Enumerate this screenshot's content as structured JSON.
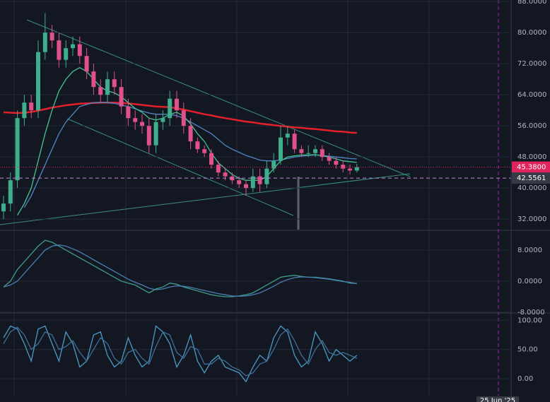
{
  "chart_data": [
    {
      "type": "candlestick",
      "open": [
        34,
        36,
        42,
        58,
        62,
        60,
        75,
        80,
        78,
        73,
        76,
        77,
        74,
        70,
        66,
        64,
        68,
        66,
        61,
        58,
        57,
        56,
        51,
        57,
        58,
        63,
        60,
        56,
        52,
        50,
        49,
        46,
        44,
        43,
        42,
        41,
        40,
        43,
        41,
        45,
        47,
        53,
        54,
        50,
        49,
        49,
        50,
        48,
        47,
        46,
        45,
        44.5
      ],
      "high": [
        38,
        44,
        60,
        64,
        64,
        78,
        85,
        82,
        80,
        78,
        79,
        79,
        76,
        72,
        68,
        70,
        70,
        68,
        63,
        60,
        59,
        58,
        59,
        60,
        65,
        65,
        62,
        58,
        53,
        51,
        50,
        47,
        45,
        44,
        43,
        42,
        45,
        45,
        47,
        49,
        56,
        56,
        55,
        51,
        51,
        51,
        51,
        49,
        48,
        47,
        46,
        46.2
      ],
      "low": [
        32,
        34,
        40,
        56,
        58,
        58,
        73,
        76,
        71,
        71,
        74,
        72,
        68,
        64,
        62,
        62,
        64,
        59,
        56,
        55,
        54,
        49,
        49,
        55,
        56,
        58,
        54,
        50,
        49,
        48,
        45,
        43,
        42,
        41,
        40,
        38,
        39,
        39,
        40,
        44,
        46,
        51,
        49,
        48,
        48,
        48,
        47,
        46,
        45,
        44,
        43.5,
        44
      ],
      "close": [
        36,
        42,
        58,
        62,
        60,
        75,
        80,
        78,
        73,
        76,
        77,
        74,
        70,
        66,
        64,
        68,
        66,
        61,
        58,
        57,
        56,
        51,
        57,
        58,
        63,
        60,
        56,
        52,
        50,
        49,
        46,
        44,
        43,
        42,
        41,
        40,
        43,
        41,
        45,
        47,
        53,
        54,
        50,
        49,
        49,
        50,
        48,
        47,
        46,
        45,
        44.5,
        45.38
      ],
      "up_color": "#3fae8c",
      "down_color": "#e0508a",
      "series": [
        {
          "color": "#e3202a",
          "values": [
            59.5,
            59.4,
            59.3,
            59.4,
            59.6,
            59.9,
            60.3,
            60.7,
            61,
            61.3,
            61.5,
            61.7,
            61.8,
            61.9,
            62,
            62,
            62,
            61.9,
            61.8,
            61.6,
            61.4,
            61.2,
            61,
            60.9,
            60.8,
            60.5,
            60.2,
            59.8,
            59.4,
            59,
            58.7,
            58.3,
            58,
            57.7,
            57.4,
            57.1,
            56.9,
            56.6,
            56.4,
            56.2,
            56,
            55.8,
            55.6,
            55.5,
            55.3,
            55.2,
            55,
            54.8,
            54.6,
            54.5,
            54.3,
            54.2
          ]
        },
        {
          "color": "#4f86c6",
          "values": [
            null,
            null,
            null,
            35,
            38,
            42,
            46,
            50,
            54,
            57,
            59,
            61,
            61.5,
            62,
            62,
            62,
            61.8,
            61.4,
            61,
            60.4,
            59.8,
            59.3,
            59,
            59,
            59,
            58.6,
            58,
            57,
            56,
            55,
            54,
            52.5,
            51,
            50,
            49.2,
            48.4,
            47.8,
            47.2,
            47,
            47,
            47.2,
            47.6,
            48,
            48.2,
            48.4,
            48.5,
            48.4,
            48.2,
            48,
            47.8,
            47.6,
            47.5
          ]
        },
        {
          "color": "#45c48f",
          "values": [
            null,
            null,
            33,
            36,
            40,
            47,
            54,
            60,
            65,
            68,
            70,
            71,
            70,
            68,
            66,
            65,
            64.5,
            63.5,
            62,
            60.5,
            59.5,
            58,
            57.5,
            58,
            59,
            59.5,
            58.5,
            56.5,
            54,
            52,
            49,
            46.5,
            45,
            43.5,
            42.5,
            42,
            42,
            42,
            43,
            45,
            47,
            48,
            48.3,
            48.5,
            48.5,
            48.6,
            48.3,
            48,
            47.5,
            47,
            46.8,
            46.6
          ]
        }
      ],
      "ylim": [
        29.3,
        88.4
      ],
      "yticks": [
        {
          "value": 32,
          "label": "32.0000"
        },
        {
          "value": 40,
          "label": "40.0000"
        },
        {
          "value": 48,
          "label": "48.0000"
        },
        {
          "value": 56,
          "label": "56.0000"
        },
        {
          "value": 64,
          "label": "64.0000"
        },
        {
          "value": 72,
          "label": "72.0000"
        },
        {
          "value": 80,
          "label": "80.0000"
        },
        {
          "value": 88,
          "label": "88.0000"
        }
      ],
      "last_price": {
        "value": 45.38,
        "label": "45.3800",
        "color": "#e0245e"
      },
      "crosshair": {
        "value": 42.5561,
        "label": "42.5561",
        "x_label": "25 Jun '25"
      },
      "grid": true
    },
    {
      "type": "line",
      "series": [
        {
          "color": "#3d9c8c",
          "values": [
            -1.5,
            0,
            3,
            5,
            7,
            9,
            10.5,
            10,
            9,
            8,
            7,
            6,
            5,
            4,
            3,
            2,
            1,
            0,
            -0.5,
            -1,
            -2,
            -3,
            -2,
            -1.5,
            -0.5,
            -0.8,
            -1.5,
            -2,
            -2.5,
            -3,
            -3.5,
            -3.8,
            -4,
            -4,
            -3.8,
            -3.5,
            -3,
            -2,
            -1,
            0,
            1,
            1.3,
            1.5,
            1.2,
            1,
            1,
            0.8,
            0.6,
            0.3,
            0,
            -0.5,
            -0.6
          ]
        },
        {
          "color": "#4b7fb0",
          "values": [
            -1.5,
            -1,
            0,
            2,
            4,
            6,
            8,
            9,
            9.3,
            9,
            8.3,
            7.5,
            6.5,
            5.5,
            4.5,
            3.5,
            2.5,
            1.5,
            0.5,
            -0.3,
            -1,
            -1.8,
            -2.2,
            -2,
            -1.5,
            -1.2,
            -1.3,
            -1.6,
            -2,
            -2.4,
            -2.8,
            -3.2,
            -3.5,
            -3.8,
            -3.9,
            -3.8,
            -3.5,
            -3,
            -2.2,
            -1.3,
            -0.3,
            0.4,
            0.9,
            1.1,
            1,
            0.9,
            0.7,
            0.5,
            0.2,
            -0.1,
            -0.3,
            -0.6
          ]
        }
      ],
      "ylim": [
        -8,
        12.7
      ],
      "yticks": [
        {
          "value": -8,
          "label": "-8.0000"
        },
        {
          "value": 0,
          "label": "0.0000"
        },
        {
          "value": 8,
          "label": "8.0000"
        }
      ],
      "grid": true
    },
    {
      "type": "line",
      "series": [
        {
          "color": "#4a9cc4",
          "values": [
            70,
            90,
            85,
            60,
            30,
            85,
            90,
            60,
            30,
            80,
            60,
            20,
            30,
            75,
            80,
            40,
            20,
            30,
            70,
            40,
            20,
            30,
            90,
            80,
            60,
            20,
            40,
            75,
            30,
            10,
            30,
            40,
            20,
            15,
            10,
            -5,
            20,
            40,
            30,
            70,
            90,
            80,
            40,
            20,
            30,
            80,
            60,
            30,
            50,
            40,
            30,
            40
          ]
        },
        {
          "color": "#3d6f96",
          "values": [
            60,
            80,
            88,
            75,
            50,
            60,
            80,
            75,
            50,
            55,
            65,
            45,
            30,
            50,
            70,
            60,
            35,
            25,
            45,
            50,
            35,
            25,
            55,
            80,
            75,
            45,
            35,
            55,
            50,
            25,
            25,
            35,
            30,
            20,
            15,
            5,
            10,
            25,
            30,
            50,
            75,
            85,
            65,
            40,
            25,
            50,
            65,
            45,
            40,
            45,
            40,
            35
          ]
        }
      ],
      "ylim": [
        -29,
        110
      ],
      "yticks": [
        {
          "value": 0,
          "label": "0.00"
        },
        {
          "value": 50,
          "label": "50.00"
        },
        {
          "value": 100,
          "label": "100.00"
        }
      ],
      "grid": true
    }
  ]
}
